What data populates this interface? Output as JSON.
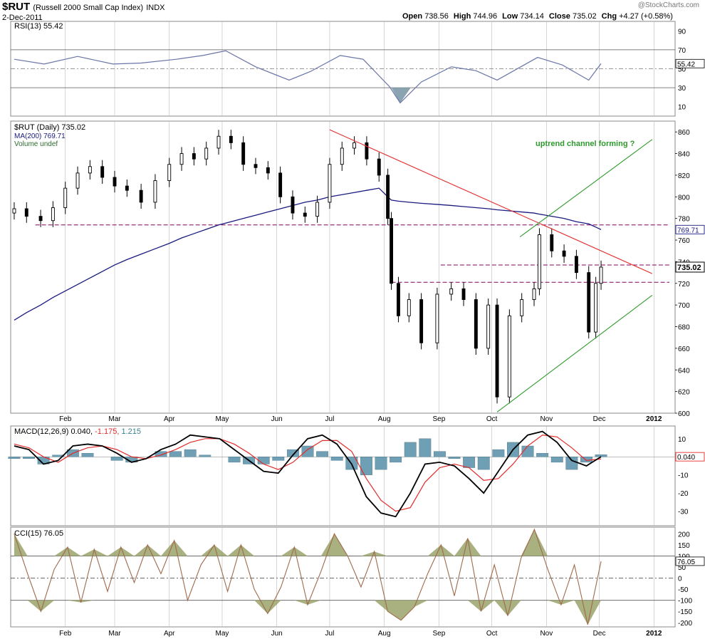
{
  "header": {
    "symbol": "$RUT",
    "name": "(Russell 2000 Small Cap Index)",
    "exchange": "INDX",
    "date": "2-Dec-2011",
    "open_label": "Open",
    "open": "738.56",
    "high_label": "High",
    "high": "744.96",
    "low_label": "Low",
    "low": "734.14",
    "close_label": "Close",
    "close": "735.02",
    "chg_label": "Chg",
    "chg": "+4.27 (+0.58%)",
    "watermark": "@StockCharts.com"
  },
  "colors": {
    "price_bar": "#000000",
    "ma": "#1a1a80",
    "resistance": "#e52b2b",
    "channel": "#2e9a2e",
    "support": "#800060",
    "rsi": "#6a74a8",
    "macd": "#000000",
    "signal": "#e52b2b",
    "histogram": "#6f9fb4",
    "cci": "#a06a4a",
    "cci_fill": "#9aa36a",
    "grid": "#bbbbbb",
    "annotation": "#2e9a2e"
  },
  "chart_data": [
    {
      "type": "line",
      "panel": "RSI",
      "legend": "RSI(13) 55.42",
      "last_label": "55.42",
      "y_ticks": [
        10,
        30,
        50,
        70,
        90
      ],
      "ylim": [
        0,
        100
      ],
      "reference_lines": [
        30,
        50,
        70
      ],
      "x_dates": [
        "2011-01-03",
        "2011-01-20",
        "2011-02-08",
        "2011-02-28",
        "2011-03-16",
        "2011-04-05",
        "2011-04-20",
        "2011-05-03",
        "2011-05-20",
        "2011-06-08",
        "2011-06-20",
        "2011-07-07",
        "2011-07-20",
        "2011-08-04",
        "2011-08-10",
        "2011-08-22",
        "2011-09-08",
        "2011-09-22",
        "2011-10-04",
        "2011-10-27",
        "2011-11-10",
        "2011-11-25",
        "2011-12-02"
      ],
      "values": [
        60,
        55,
        63,
        55,
        56,
        60,
        64,
        69,
        52,
        38,
        47,
        64,
        60,
        31,
        14,
        36,
        52,
        48,
        38,
        62,
        54,
        38,
        55.42
      ]
    },
    {
      "type": "candlestick",
      "panel": "price",
      "legend": [
        "$RUT (Daily) 735.02",
        "MA(200) 769.71",
        "Volume undef"
      ],
      "x_ticks": [
        "Feb",
        "Mar",
        "Apr",
        "May",
        "Jun",
        "Jul",
        "Aug",
        "Sep",
        "Oct",
        "Nov",
        "Dec",
        "2012"
      ],
      "y_ticks": [
        600,
        620,
        640,
        660,
        680,
        700,
        720,
        740,
        760,
        780,
        800,
        820,
        840,
        860
      ],
      "ylim": [
        600,
        870
      ],
      "last_close_label": "735.02",
      "ma_label": "769.71",
      "x_dates": [
        "2011-01-03",
        "2011-01-10",
        "2011-01-18",
        "2011-01-25",
        "2011-02-01",
        "2011-02-08",
        "2011-02-15",
        "2011-02-22",
        "2011-03-01",
        "2011-03-08",
        "2011-03-16",
        "2011-03-24",
        "2011-04-01",
        "2011-04-08",
        "2011-04-15",
        "2011-04-22",
        "2011-04-29",
        "2011-05-06",
        "2011-05-13",
        "2011-05-20",
        "2011-05-27",
        "2011-06-03",
        "2011-06-10",
        "2011-06-17",
        "2011-06-24",
        "2011-07-01",
        "2011-07-08",
        "2011-07-15",
        "2011-07-22",
        "2011-07-29",
        "2011-08-03",
        "2011-08-05",
        "2011-08-09",
        "2011-08-15",
        "2011-08-22",
        "2011-08-31",
        "2011-09-08",
        "2011-09-15",
        "2011-09-22",
        "2011-09-29",
        "2011-10-04",
        "2011-10-11",
        "2011-10-18",
        "2011-10-25",
        "2011-10-28",
        "2011-11-04",
        "2011-11-11",
        "2011-11-18",
        "2011-11-25",
        "2011-11-29",
        "2011-12-02"
      ],
      "close": [
        789,
        782,
        778,
        790,
        808,
        822,
        828,
        818,
        810,
        806,
        795,
        815,
        830,
        840,
        835,
        845,
        856,
        850,
        830,
        827,
        822,
        800,
        785,
        782,
        795,
        830,
        845,
        850,
        835,
        820,
        780,
        720,
        690,
        705,
        665,
        710,
        715,
        705,
        660,
        700,
        615,
        690,
        705,
        715,
        765,
        750,
        745,
        730,
        675,
        720,
        735.02
      ],
      "ma200": [
        686,
        693,
        700,
        707,
        713,
        719,
        725,
        731,
        737,
        742,
        747,
        752,
        757,
        762,
        766,
        770,
        774,
        777,
        780,
        783,
        786,
        789,
        792,
        795,
        797,
        800,
        802,
        804,
        806,
        808,
        800,
        797,
        796,
        795,
        794,
        793,
        792,
        791,
        790,
        789,
        788,
        787,
        786,
        785,
        784,
        782,
        780,
        777,
        775,
        772,
        769.71
      ],
      "support_lines": [
        774,
        737,
        721
      ],
      "annotation": "uptrend channel forming ?"
    },
    {
      "type": "line",
      "panel": "MACD",
      "legend_name": "MACD(12,26,9)",
      "legend_values": [
        "0.040",
        "-1.175",
        "1.215"
      ],
      "last_label": "0.040",
      "y_ticks": [
        -30,
        -20,
        -10,
        0,
        10
      ],
      "ylim": [
        -38,
        17
      ],
      "series": [
        {
          "name": "MACD",
          "values": [
            6,
            4,
            -4,
            -2,
            6,
            7,
            6,
            2,
            -3,
            -1,
            4,
            7,
            12,
            11,
            10,
            4,
            -2,
            -8,
            -9,
            1,
            10,
            12,
            7,
            -4,
            -22,
            -31,
            -33,
            -20,
            -4,
            -3,
            -5,
            -12,
            -20,
            -8,
            4,
            12,
            14,
            8,
            -2,
            -5,
            0.04
          ]
        },
        {
          "name": "Signal",
          "values": [
            7,
            5,
            0,
            -3,
            2,
            5,
            6,
            4,
            0,
            -1,
            1,
            4,
            8,
            10,
            10,
            7,
            2,
            -4,
            -7,
            -3,
            4,
            9,
            9,
            3,
            -12,
            -24,
            -30,
            -28,
            -14,
            -6,
            -4,
            -6,
            -13,
            -12,
            -4,
            6,
            12,
            11,
            5,
            -2,
            -1.175
          ]
        },
        {
          "name": "Histogram",
          "values": [
            -1,
            -1,
            -4,
            1,
            4,
            2,
            0,
            -2,
            -3,
            0,
            3,
            3,
            4,
            1,
            0,
            -3,
            -4,
            -4,
            -2,
            4,
            6,
            3,
            -2,
            -7,
            -10,
            -7,
            -3,
            8,
            10,
            3,
            -1,
            -6,
            -7,
            4,
            8,
            6,
            2,
            -3,
            -7,
            -3,
            1.215
          ]
        }
      ]
    },
    {
      "type": "line",
      "panel": "CCI",
      "legend": "CCI(15) 76.05",
      "last_label": "76.05",
      "y_ticks": [
        -200,
        -150,
        -100,
        -50,
        0,
        50,
        100,
        150,
        200
      ],
      "ylim": [
        -220,
        230
      ],
      "reference_lines": [
        -100,
        0,
        100
      ],
      "values": [
        200,
        20,
        -150,
        40,
        140,
        -110,
        130,
        -60,
        140,
        -20,
        150,
        20,
        170,
        -100,
        60,
        150,
        -60,
        150,
        -50,
        -160,
        -40,
        140,
        -120,
        30,
        200,
        100,
        -40,
        120,
        -150,
        -190,
        -130,
        20,
        150,
        -80,
        180,
        -150,
        60,
        -170,
        90,
        220,
        40,
        -120,
        60,
        -210,
        76.05
      ]
    }
  ]
}
